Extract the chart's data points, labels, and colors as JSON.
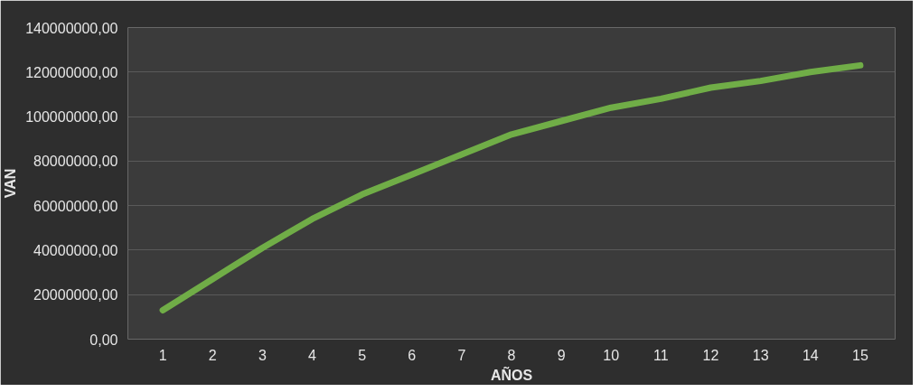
{
  "chart_data": {
    "type": "line",
    "xlabel": "AÑOS",
    "ylabel": "VAN",
    "x": [
      1,
      2,
      3,
      4,
      5,
      6,
      7,
      8,
      9,
      10,
      11,
      12,
      13,
      14,
      15
    ],
    "xlim": [
      0.3,
      15.7
    ],
    "xticks": [
      1,
      2,
      3,
      4,
      5,
      6,
      7,
      8,
      9,
      10,
      11,
      12,
      13,
      14,
      15
    ],
    "series": [
      {
        "color": "#70ad47",
        "values": [
          13000000,
          27000000,
          41000000,
          54000000,
          65000000,
          74000000,
          83000000,
          92000000,
          98000000,
          104000000,
          108000000,
          113000000,
          116000000,
          120000000,
          123000000
        ]
      }
    ],
    "ylim": [
      0,
      140000000
    ],
    "yticks": [
      {
        "value": 0,
        "label": "0,00"
      },
      {
        "value": 20000000,
        "label": "20000000,00"
      },
      {
        "value": 40000000,
        "label": "40000000,00"
      },
      {
        "value": 60000000,
        "label": "60000000,00"
      },
      {
        "value": 80000000,
        "label": "80000000,00"
      },
      {
        "value": 100000000,
        "label": "100000000,00"
      },
      {
        "value": 120000000,
        "label": "120000000,00"
      },
      {
        "value": 140000000,
        "label": "140000000,00"
      }
    ],
    "grid": "y",
    "marker": "none",
    "line_style": "solid"
  }
}
